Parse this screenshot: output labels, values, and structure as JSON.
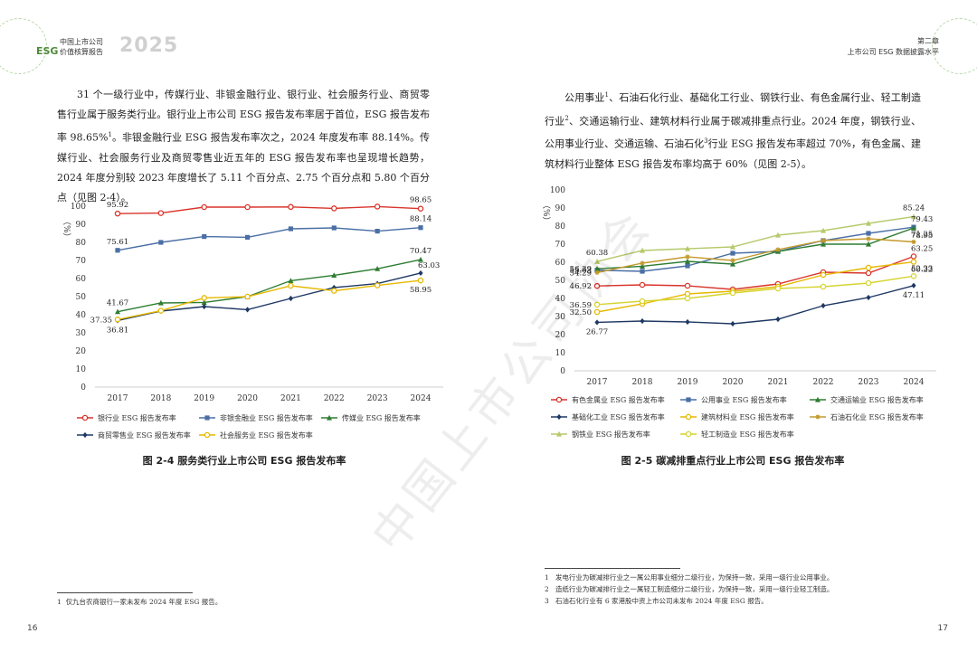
{
  "header": {
    "esg_label": "ESG",
    "title_line1": "中国上市公司",
    "title_line2": "价值核算报告",
    "year": "2025",
    "chapter": "第二章",
    "chapter_title": "上市公司 ESG 数据披露水平",
    "accent_color": "#4f8a3a"
  },
  "left_page": {
    "paragraphs": [
      "31 个一级行业中，传媒行业、非银金融行业、银行业、社会服务行业、商贸零售行业属于服务类行业。银行业上市公司 ESG 报告发布率居于首位，ESG 报告发布率 98.65%",
      "。非银金融行业 ESG 报告发布率次之，2024 年度发布率 88.14%。传媒行业、社会服务行业及商贸零售业近五年的 ESG 报告发布率也呈现增长趋势，2024 年度分别较 2023 年度增长了 5.11 个百分点、2.75 个百分点和 5.80 个百分点（见图 2-4）。"
    ],
    "footnote_ref": "1",
    "caption": "图 2-4 服务类行业上市公司 ESG 报告发布率",
    "footnote_num": "1",
    "footnote_text": "仅九台农商银行一家未发布 2024 年度 ESG 报告。",
    "page_number": "16"
  },
  "right_page": {
    "paragraph_parts": [
      "公用事业",
      "、石油石化行业、基础化工行业、钢铁行业、有色金属行业、轻工制造行业",
      "、交通运输行业、建筑材料行业属于碳减排重点行业。2024 年度，钢铁行业、公用事业行业、交通运输、石油石化",
      "行业 ESG 报告发布率超过 70%，有色金属、建筑材料行业整体 ESG 报告发布率均高于 60%（见图 2-5）。"
    ],
    "refs": [
      "1",
      "2",
      "3"
    ],
    "caption": "图 2-5 碳减排重点行业上市公司 ESG 报告发布率",
    "footnotes": [
      {
        "num": "1",
        "text": "发电行业为碳减排行业之一属公用事业细分二级行业，为保持一致，采用一级行业公用事业。"
      },
      {
        "num": "2",
        "text": "造纸行业为碳减排行业之一属轻工制造细分二级行业，为保持一致，采用一级行业轻工制造。"
      },
      {
        "num": "3",
        "text": "石油石化行业有 6 家港股中资上市公司未发布 2024 年度 ESG 报告。"
      }
    ],
    "page_number": "17"
  },
  "watermark": "中国上市公司协会",
  "chart_data": [
    {
      "type": "line",
      "title": "图 2-4 服务类行业上市公司 ESG 报告发布率",
      "ylabel": "（%）",
      "ylim": [
        0,
        100
      ],
      "yticks": [
        0,
        10,
        20,
        30,
        40,
        50,
        60,
        70,
        80,
        90,
        100
      ],
      "x": [
        "2017",
        "2018",
        "2019",
        "2020",
        "2021",
        "2022",
        "2023",
        "2024"
      ],
      "legend_placement": "bottom",
      "series": [
        {
          "name": "银行业 ESG 报告发布率",
          "color": "#d9342b",
          "marker": "circle",
          "values": [
            95.92,
            96.2,
            99.5,
            99.5,
            99.6,
            98.8,
            99.8,
            98.65
          ]
        },
        {
          "name": "非银金融业 ESG 报告发布率",
          "color": "#4a6fa5",
          "marker": "square",
          "values": [
            75.61,
            80,
            83.2,
            82.8,
            87.5,
            88,
            86.2,
            88.14
          ]
        },
        {
          "name": "传媒业 ESG 报告发布率",
          "color": "#2e7d32",
          "marker": "triangle",
          "values": [
            41.67,
            46.5,
            46.8,
            50,
            58.8,
            61.8,
            65.4,
            70.47
          ]
        },
        {
          "name": "商贸零售业 ESG 报告发布率",
          "color": "#1f3864",
          "marker": "diamond",
          "values": [
            36.81,
            42,
            44.5,
            42.8,
            49,
            55,
            57.2,
            63.03
          ]
        },
        {
          "name": "社会服务业 ESG 报告发布率",
          "color": "#e6b800",
          "marker": "circle",
          "values": [
            37.35,
            42.2,
            49.3,
            50,
            56,
            53.2,
            56.2,
            58.95
          ]
        }
      ],
      "data_labels": [
        {
          "series": 0,
          "index": 0,
          "text": "95.92",
          "pos": "above"
        },
        {
          "series": 0,
          "index": 7,
          "text": "98.65",
          "pos": "above"
        },
        {
          "series": 1,
          "index": 0,
          "text": "75.61",
          "pos": "above"
        },
        {
          "series": 1,
          "index": 7,
          "text": "88.14",
          "pos": "above"
        },
        {
          "series": 2,
          "index": 0,
          "text": "41.67",
          "pos": "above"
        },
        {
          "series": 2,
          "index": 7,
          "text": "70.47",
          "pos": "above"
        },
        {
          "series": 3,
          "index": 7,
          "text": "63.03",
          "pos": "right"
        },
        {
          "series": 4,
          "index": 0,
          "text": "37.35",
          "pos": "left"
        },
        {
          "series": 3,
          "index": 0,
          "text": "36.81",
          "pos": "below"
        },
        {
          "series": 4,
          "index": 7,
          "text": "58.95",
          "pos": "below"
        }
      ]
    },
    {
      "type": "line",
      "title": "图 2-5 碳减排重点行业上市公司 ESG 报告发布率",
      "ylabel": "（%）",
      "ylim": [
        0,
        100
      ],
      "yticks": [
        0,
        10,
        20,
        30,
        40,
        50,
        60,
        70,
        80,
        90,
        100
      ],
      "x": [
        "2017",
        "2018",
        "2019",
        "2020",
        "2021",
        "2022",
        "2023",
        "2024"
      ],
      "legend_placement": "bottom",
      "series": [
        {
          "name": "有色金属业 ESG 报告发布率",
          "color": "#d9342b",
          "marker": "circle",
          "values": [
            46.92,
            47.5,
            47,
            45,
            48,
            54.5,
            54,
            63.25
          ]
        },
        {
          "name": "公用事业 ESG 报告发布率",
          "color": "#4a6fa5",
          "marker": "square",
          "values": [
            55.63,
            55,
            58,
            65,
            66,
            72,
            76,
            79.43
          ]
        },
        {
          "name": "交通运输业 ESG 报告发布率",
          "color": "#2e7d32",
          "marker": "triangle",
          "values": [
            56.39,
            57.8,
            60.5,
            59,
            66,
            70,
            70,
            78.95
          ]
        },
        {
          "name": "基础化工业 ESG 报告发布率",
          "color": "#1f3864",
          "marker": "diamond",
          "values": [
            26.77,
            27.5,
            27,
            26,
            28.5,
            36,
            40.5,
            47.11
          ]
        },
        {
          "name": "建筑材料业 ESG 报告发布率",
          "color": "#e6b800",
          "marker": "circle",
          "values": [
            32.5,
            37,
            42.5,
            44,
            46.5,
            53,
            57,
            60.22
          ]
        },
        {
          "name": "石油石化业 ESG 报告发布率",
          "color": "#c49a2c",
          "marker": "star",
          "values": [
            54.29,
            59.5,
            63,
            61,
            67,
            72,
            73,
            71.25
          ]
        },
        {
          "name": "钢铁业 ESG 报告发布率",
          "color": "#b5c96a",
          "marker": "triangle",
          "values": [
            60.38,
            66.5,
            67.5,
            68.5,
            75,
            77.5,
            81.5,
            85.24
          ]
        },
        {
          "name": "轻工制造业 ESG 报告发布率",
          "color": "#d6d430",
          "marker": "circle",
          "values": [
            36.59,
            38.5,
            40,
            43,
            45.5,
            46.5,
            48.5,
            52.33
          ]
        }
      ],
      "data_labels": [
        {
          "series": 6,
          "index": 0,
          "text": "60.38",
          "pos": "above"
        },
        {
          "series": 2,
          "index": 0,
          "text": "56.39",
          "pos": "left"
        },
        {
          "series": 1,
          "index": 0,
          "text": "55.63",
          "pos": "left"
        },
        {
          "series": 5,
          "index": 0,
          "text": "54.29",
          "pos": "left"
        },
        {
          "series": 0,
          "index": 0,
          "text": "46.92",
          "pos": "left"
        },
        {
          "series": 7,
          "index": 0,
          "text": "36.59",
          "pos": "left"
        },
        {
          "series": 4,
          "index": 0,
          "text": "32.50",
          "pos": "left"
        },
        {
          "series": 3,
          "index": 0,
          "text": "26.77",
          "pos": "below"
        },
        {
          "series": 6,
          "index": 7,
          "text": "85.24",
          "pos": "above"
        },
        {
          "series": 1,
          "index": 7,
          "text": "79.43",
          "pos": "right"
        },
        {
          "series": 2,
          "index": 7,
          "text": "78.95",
          "pos": "rightlow"
        },
        {
          "series": 5,
          "index": 7,
          "text": "71.25",
          "pos": "right"
        },
        {
          "series": 0,
          "index": 7,
          "text": "63.25",
          "pos": "right"
        },
        {
          "series": 4,
          "index": 7,
          "text": "60.22",
          "pos": "rightlow"
        },
        {
          "series": 7,
          "index": 7,
          "text": "52.33",
          "pos": "right"
        },
        {
          "series": 3,
          "index": 7,
          "text": "47.11",
          "pos": "below"
        }
      ]
    }
  ]
}
